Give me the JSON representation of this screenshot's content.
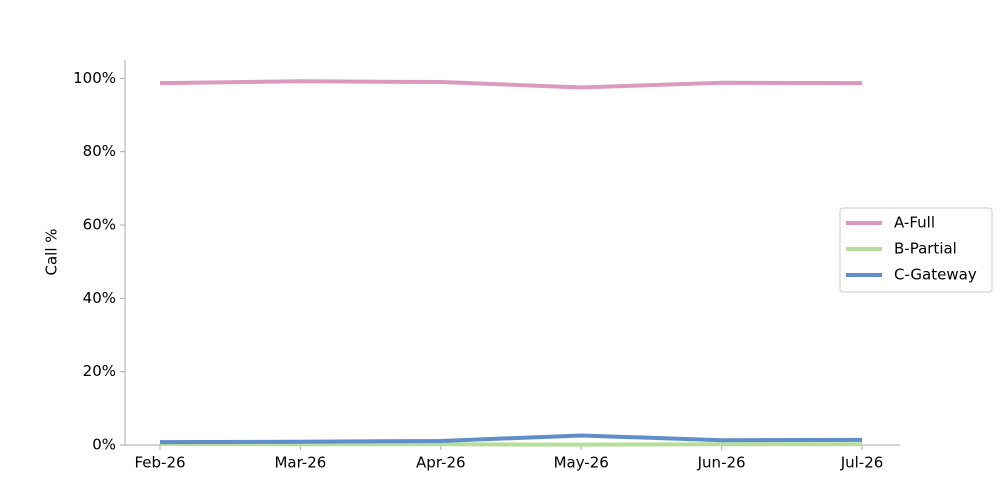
{
  "chart_data": {
    "type": "line",
    "y_label": "Call %",
    "categories": [
      "Feb-26",
      "Mar-26",
      "Apr-26",
      "May-26",
      "Jun-26",
      "Jul-26"
    ],
    "series": [
      {
        "name": "A-Full",
        "color": "#db9abd",
        "values": [
          98.7,
          99.2,
          99.0,
          97.5,
          98.8,
          98.7
        ]
      },
      {
        "name": "B-Partial",
        "color": "#b5de9a",
        "values": [
          0.3,
          0.2,
          0.2,
          0.1,
          0.2,
          0.2
        ]
      },
      {
        "name": "C-Gateway",
        "color": "#5f8ecb",
        "values": [
          0.8,
          0.9,
          1.1,
          2.6,
          1.3,
          1.4
        ]
      }
    ],
    "ylim": [
      0,
      105
    ],
    "yticks": [
      {
        "value": 0,
        "label": "0%"
      },
      {
        "value": 20,
        "label": "20%"
      },
      {
        "value": 40,
        "label": "40%"
      },
      {
        "value": 60,
        "label": "60%"
      },
      {
        "value": 80,
        "label": "80%"
      },
      {
        "value": 100,
        "label": "100%"
      }
    ],
    "legend": "right"
  }
}
